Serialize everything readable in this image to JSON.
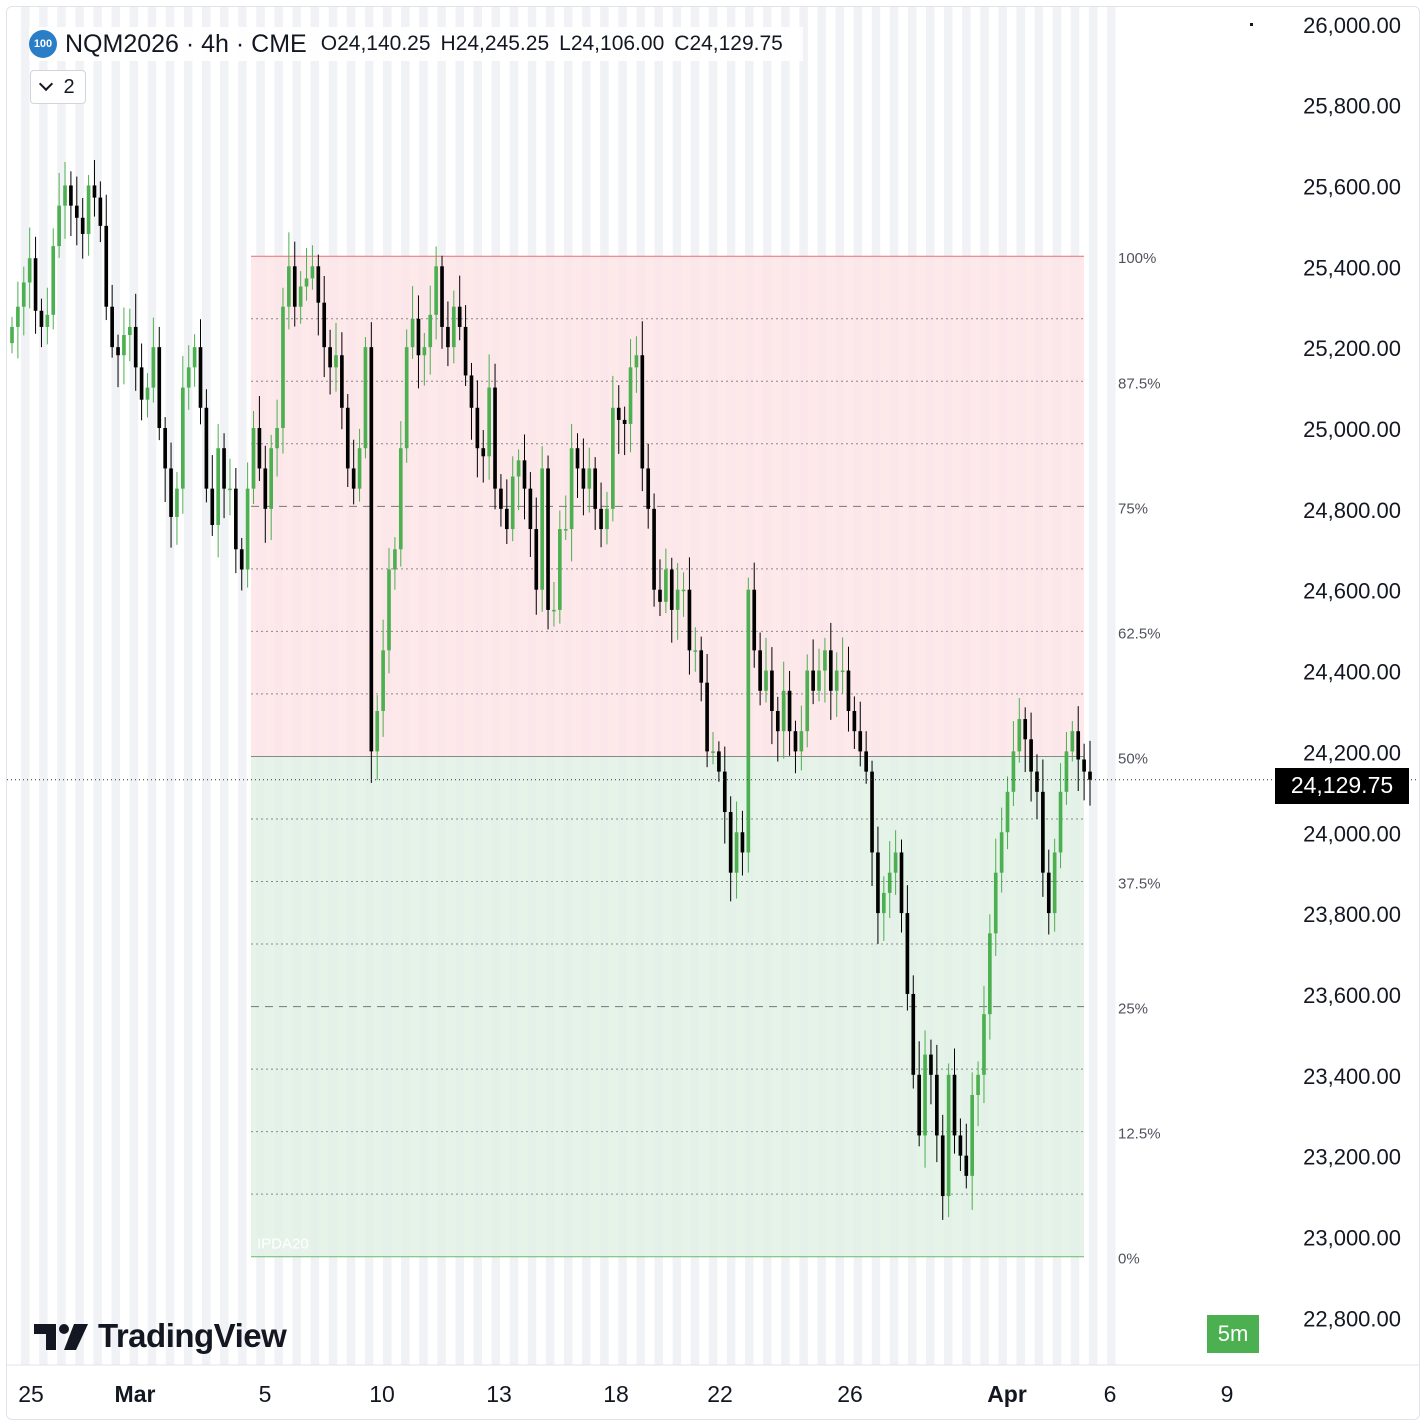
{
  "symbol": {
    "badge": "100",
    "title": "NQM2026 · 4h · CME",
    "open_label": "O",
    "open": "24,140.25",
    "high_label": "H",
    "high": "24,245.25",
    "low_label": "L",
    "low": "24,106.00",
    "close_label": "C",
    "close": "24,129.75"
  },
  "indicators_toggle": {
    "count": "2"
  },
  "brand": {
    "logo_text": "TradingView"
  },
  "interval_badge": "5m",
  "last_price": "24,129.75",
  "colors": {
    "up": "#4caf50",
    "down": "#000000",
    "premium_zone": "#fde4e6",
    "discount_zone": "#e2f1e5",
    "zone_top_line": "#e57373",
    "zone_bottom_line": "#66bb6a",
    "mid_line": "#888888"
  },
  "chart_data": {
    "type": "candlestick",
    "y_axis": {
      "range": [
        22700,
        26050
      ],
      "ticks": [
        "26,000.00",
        "25,800.00",
        "25,600.00",
        "25,400.00",
        "25,200.00",
        "25,000.00",
        "24,800.00",
        "24,600.00",
        "24,400.00",
        "24,200.00",
        "24,000.00",
        "23,800.00",
        "23,600.00",
        "23,400.00",
        "23,200.00",
        "23,000.00",
        "22,800.00"
      ]
    },
    "x_axis": {
      "labels": [
        "25",
        "Mar",
        "5",
        "10",
        "13",
        "18",
        "22",
        "26",
        "Apr",
        "6",
        "9"
      ],
      "bold_labels": [
        "Mar",
        "Apr"
      ]
    },
    "dealing_range": {
      "label": "IPDA20",
      "high": 25425,
      "low": 22950,
      "levels": [
        {
          "pct": 1.0,
          "label": "100%"
        },
        {
          "pct": 0.875,
          "label": "87.5%"
        },
        {
          "pct": 0.75,
          "label": "75%"
        },
        {
          "pct": 0.625,
          "label": "62.5%"
        },
        {
          "pct": 0.5,
          "label": "50%"
        },
        {
          "pct": 0.375,
          "label": "37.5%"
        },
        {
          "pct": 0.25,
          "label": "25%"
        },
        {
          "pct": 0.125,
          "label": "12.5%"
        },
        {
          "pct": 0.0,
          "label": "0%"
        }
      ]
    },
    "closes": [
      25250,
      25300,
      25360,
      25420,
      25290,
      25250,
      25280,
      25450,
      25550,
      25600,
      25550,
      25520,
      25480,
      25600,
      25570,
      25500,
      25300,
      25200,
      25180,
      25230,
      25250,
      25150,
      25070,
      25100,
      25200,
      25000,
      24900,
      24780,
      24850,
      25100,
      25150,
      25200,
      25050,
      24850,
      24760,
      24950,
      24850,
      24850,
      24700,
      24650,
      24850,
      25000,
      24900,
      24800,
      24950,
      25000,
      25300,
      25400,
      25300,
      25350,
      25370,
      25400,
      25310,
      25200,
      25150,
      25180,
      25050,
      24900,
      24850,
      24950,
      25200,
      24200,
      24300,
      24450,
      24650,
      24700,
      24950,
      25200,
      25270,
      25180,
      25200,
      25280,
      25400,
      25250,
      25200,
      25300,
      25250,
      25130,
      25050,
      24950,
      24930,
      25100,
      24850,
      24800,
      24750,
      24880,
      24920,
      24850,
      24750,
      24600,
      24900,
      24550,
      24550,
      24750,
      24750,
      24950,
      24900,
      24850,
      24900,
      24800,
      24750,
      24800,
      25050,
      25020,
      25010,
      25150,
      25180,
      24900,
      24800,
      24600,
      24570,
      24650,
      24550,
      24600,
      24600,
      24450,
      24450,
      24370,
      24200,
      24200,
      24150,
      24050,
      23900,
      24000,
      23950,
      24600,
      24450,
      24350,
      24400,
      24300,
      24250,
      24350,
      24250,
      24200,
      24250,
      24400,
      24350,
      24400,
      24450,
      24350,
      24400,
      24400,
      24300,
      24250,
      24200,
      24150,
      23950,
      23800,
      23850,
      23900,
      23950,
      23800,
      23600,
      23400,
      23250,
      23450,
      23400,
      23250,
      23100,
      23400,
      23250,
      23200,
      23150,
      23350,
      23400,
      23550,
      23750,
      23900,
      24000,
      24100,
      24200,
      24280,
      24230,
      24150,
      24100,
      23900,
      23800,
      23950,
      24100,
      24200,
      24250,
      24180,
      24150,
      24130
    ]
  }
}
